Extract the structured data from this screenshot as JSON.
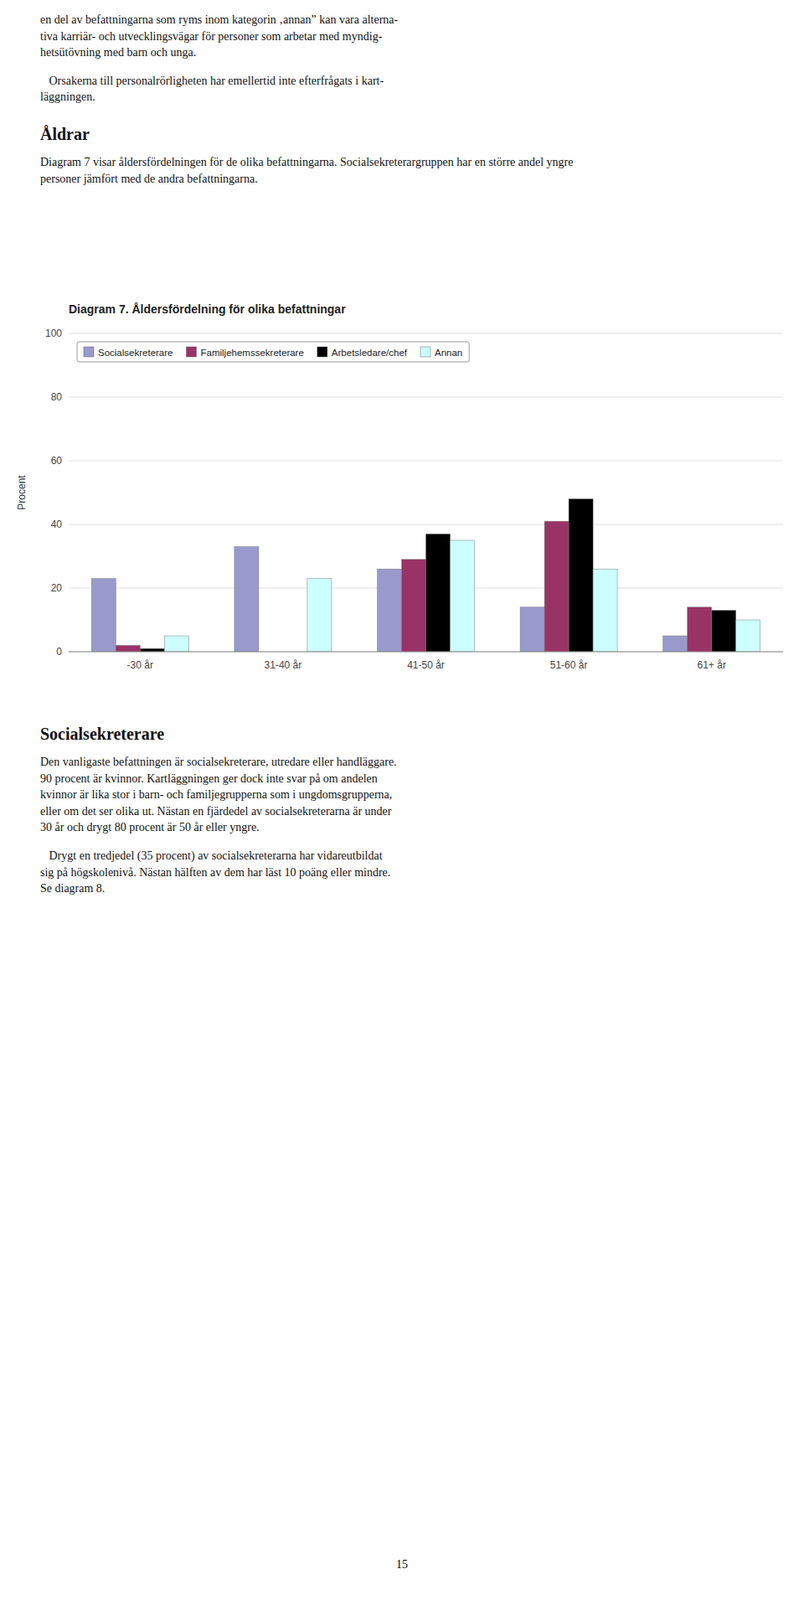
{
  "page": {
    "before": [
      {
        "style": "paragraph",
        "text": "en del av befattningarna som ryms inom kategorin ‚annan” kan vara alterna-\ntiva karriär- och utvecklingsvägar för personer som arbetar med myndig-\nhetsütövning med barn och unga."
      },
      {
        "style": "paragraph",
        "text": "   Orsakerna till personalrörligheten har emellertid inte efterfrågats i kart-\nläggningen."
      },
      {
        "style": "heading",
        "text": "Åldrar"
      },
      {
        "style": "paragraph",
        "text": "Diagram 7 visar åldersfördelningen för de olika befattningarna. Socialsekreterargruppen har en större andel yngre\npersoner jämfört med de andra befattningarna."
      }
    ],
    "after": [
      {
        "style": "heading",
        "text": "Socialsekreterare"
      },
      {
        "style": "paragraph",
        "text": "Den vanligaste befattningen är socialsekreterare, utredare eller handläggare.\n90 procent är kvinnor. Kartläggningen ger dock inte svar på om andelen\nkvinnor är lika stor i barn- och familjegrupperna som i ungdomsgrupperna,\neller om det ser olika ut. Nästan en fjärdedel av socialsekreterarna är under\n30 år och drygt 80 procent är 50 år eller yngre."
      },
      {
        "style": "paragraph",
        "text": "   Drygt en tredjedel (35 procent) av socialsekreterarna har vidareutbildat\nsig på högskolenivå. Nästan hälften av dem har läst 10 poäng eller mindre.\nSe diagram 8."
      }
    ],
    "page_number": "15"
  },
  "chart_data": {
    "type": "bar",
    "title": "Diagram 7. Åldersfördelning för olika befattningar",
    "y_label": "Procent",
    "categories": [
      "-30 år",
      "31-40 år",
      "41-50 år",
      "51-60 år",
      "61+ år"
    ],
    "series": [
      {
        "name": "Socialsekreterare",
        "color": "#9999cc",
        "values": [
          23,
          33,
          26,
          14,
          5
        ]
      },
      {
        "name": "Familjehemssekreterare",
        "color": "#993366",
        "values": [
          2,
          0,
          29,
          41,
          14
        ]
      },
      {
        "name": "Arbetsledare/chef",
        "color": "#000000",
        "values": [
          1,
          0,
          37,
          48,
          13
        ]
      },
      {
        "name": "Annan",
        "color": "#ccffff",
        "values": [
          5,
          23,
          35,
          26,
          10
        ]
      }
    ],
    "ylim": [
      0,
      100
    ],
    "yticks": [
      0,
      20,
      40,
      60,
      80,
      100
    ],
    "grid": true,
    "legend": "upper left"
  }
}
